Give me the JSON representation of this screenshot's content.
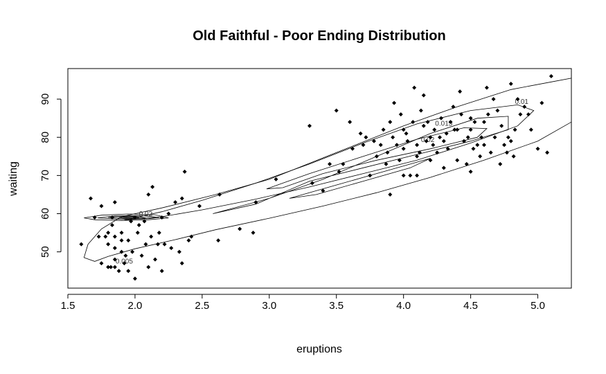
{
  "chart_data": {
    "type": "scatter",
    "title": "Old Faithful - Poor Ending Distribution",
    "xlabel": "eruptions",
    "ylabel": "waiting",
    "xlim": [
      1.5,
      5.25
    ],
    "ylim": [
      40.5,
      98
    ],
    "x_ticks": [
      "1.5",
      "2.0",
      "2.5",
      "3.0",
      "3.5",
      "4.0",
      "4.5",
      "5.0"
    ],
    "y_ticks": [
      "50",
      "60",
      "70",
      "80",
      "90"
    ],
    "grid": false,
    "contour_labels": [
      "0.005",
      "0.01",
      "0.015",
      "0.02",
      "0.02"
    ],
    "contours": [
      {
        "level": "0.005",
        "path": [
          [
            1.62,
            48.5
          ],
          [
            1.65,
            52
          ],
          [
            1.75,
            56
          ],
          [
            1.9,
            59.2
          ],
          [
            2.2,
            61.5
          ],
          [
            2.6,
            65
          ],
          [
            3.0,
            69
          ],
          [
            3.5,
            76
          ],
          [
            4.0,
            83
          ],
          [
            4.4,
            88
          ],
          [
            4.8,
            92.5
          ],
          [
            5.1,
            94.5
          ],
          [
            5.25,
            95.5
          ],
          [
            5.25,
            84
          ],
          [
            5.0,
            79
          ],
          [
            4.6,
            74
          ],
          [
            4.2,
            69.5
          ],
          [
            3.8,
            65.5
          ],
          [
            3.4,
            62
          ],
          [
            3.0,
            58.8
          ],
          [
            2.6,
            55.8
          ],
          [
            2.3,
            53.2
          ],
          [
            2.0,
            50.8
          ],
          [
            1.8,
            48.8
          ],
          [
            1.7,
            47.5
          ],
          [
            1.62,
            48.5
          ]
        ]
      },
      {
        "level": "0.01",
        "path": [
          [
            1.92,
            58.3
          ],
          [
            2.2,
            60.5
          ],
          [
            2.5,
            63.5
          ],
          [
            2.9,
            68
          ],
          [
            3.3,
            73
          ],
          [
            3.7,
            78.5
          ],
          [
            4.1,
            83.5
          ],
          [
            4.5,
            87
          ],
          [
            4.85,
            88.5
          ],
          [
            4.97,
            87
          ],
          [
            4.85,
            83
          ],
          [
            4.5,
            78.5
          ],
          [
            4.1,
            74
          ],
          [
            3.7,
            70.5
          ],
          [
            3.3,
            67
          ],
          [
            2.9,
            63.8
          ],
          [
            2.5,
            61
          ],
          [
            2.2,
            59.2
          ],
          [
            1.92,
            58.3
          ]
        ]
      },
      {
        "level": "0.015",
        "path": [
          [
            2.58,
            60
          ],
          [
            3.0,
            64
          ],
          [
            3.4,
            69
          ],
          [
            3.8,
            75
          ],
          [
            4.2,
            81
          ],
          [
            4.55,
            85
          ],
          [
            4.78,
            85.5
          ],
          [
            4.78,
            82
          ],
          [
            4.5,
            79
          ],
          [
            4.1,
            75.5
          ],
          [
            3.7,
            72
          ],
          [
            3.3,
            68.5
          ],
          [
            2.9,
            62.5
          ],
          [
            2.58,
            60
          ]
        ]
      },
      {
        "level": "0.02",
        "path": [
          [
            2.98,
            66.5
          ],
          [
            3.3,
            70.5
          ],
          [
            3.7,
            75
          ],
          [
            4.1,
            79.5
          ],
          [
            4.45,
            82.5
          ],
          [
            4.62,
            82.3
          ],
          [
            4.55,
            80
          ],
          [
            4.2,
            77
          ],
          [
            3.8,
            74
          ],
          [
            3.4,
            70.5
          ],
          [
            3.1,
            66.8
          ],
          [
            2.98,
            66.5
          ]
        ]
      },
      {
        "level": "0.02",
        "path": [
          [
            3.15,
            64
          ],
          [
            3.5,
            67.5
          ],
          [
            3.9,
            71.5
          ],
          [
            4.2,
            74.5
          ],
          [
            4.05,
            72
          ],
          [
            3.7,
            68.5
          ],
          [
            3.35,
            65
          ],
          [
            3.15,
            64
          ]
        ]
      },
      {
        "level": "0.005-inner",
        "path": [
          [
            1.62,
            58.9
          ],
          [
            1.7,
            58.4
          ],
          [
            1.9,
            58.2
          ],
          [
            2.1,
            58.4
          ],
          [
            2.25,
            58.9
          ],
          [
            2.15,
            59.7
          ],
          [
            1.95,
            59.9
          ],
          [
            1.75,
            59.6
          ],
          [
            1.62,
            58.9
          ]
        ]
      },
      {
        "level": "0.01-inner",
        "path": [
          [
            1.72,
            58.9
          ],
          [
            1.9,
            58.5
          ],
          [
            2.1,
            58.7
          ],
          [
            2.18,
            59.0
          ],
          [
            2.05,
            59.5
          ],
          [
            1.85,
            59.4
          ],
          [
            1.72,
            58.9
          ]
        ]
      },
      {
        "level": "0.015-inner",
        "path": [
          [
            1.8,
            59.0
          ],
          [
            1.95,
            58.7
          ],
          [
            2.08,
            58.9
          ],
          [
            2.0,
            59.3
          ],
          [
            1.85,
            59.2
          ],
          [
            1.8,
            59.0
          ]
        ]
      },
      {
        "level": "0.02-inner",
        "path": [
          [
            1.88,
            59.0
          ],
          [
            1.98,
            58.85
          ],
          [
            2.03,
            59.0
          ],
          [
            1.96,
            59.15
          ],
          [
            1.88,
            59.0
          ]
        ]
      }
    ],
    "points": [
      [
        1.6,
        52
      ],
      [
        1.67,
        64
      ],
      [
        1.7,
        59
      ],
      [
        1.73,
        54
      ],
      [
        1.75,
        47
      ],
      [
        1.75,
        62
      ],
      [
        1.78,
        54
      ],
      [
        1.8,
        46
      ],
      [
        1.8,
        52
      ],
      [
        1.8,
        55
      ],
      [
        1.82,
        46
      ],
      [
        1.83,
        57
      ],
      [
        1.83,
        59
      ],
      [
        1.85,
        46
      ],
      [
        1.85,
        48
      ],
      [
        1.85,
        51
      ],
      [
        1.85,
        54
      ],
      [
        1.85,
        63
      ],
      [
        1.88,
        45
      ],
      [
        1.9,
        50
      ],
      [
        1.9,
        53
      ],
      [
        1.9,
        55
      ],
      [
        1.92,
        47
      ],
      [
        1.93,
        49
      ],
      [
        1.95,
        45
      ],
      [
        1.95,
        53
      ],
      [
        1.97,
        58
      ],
      [
        1.98,
        50
      ],
      [
        2.0,
        43
      ],
      [
        2.0,
        59
      ],
      [
        2.02,
        55
      ],
      [
        2.03,
        57
      ],
      [
        2.05,
        49
      ],
      [
        2.07,
        58
      ],
      [
        2.08,
        52
      ],
      [
        2.1,
        46
      ],
      [
        2.1,
        65
      ],
      [
        2.12,
        54
      ],
      [
        2.13,
        67
      ],
      [
        2.15,
        48
      ],
      [
        2.17,
        52
      ],
      [
        2.18,
        55
      ],
      [
        2.2,
        45
      ],
      [
        2.2,
        59
      ],
      [
        2.22,
        52
      ],
      [
        2.25,
        60
      ],
      [
        2.27,
        51
      ],
      [
        2.3,
        63
      ],
      [
        2.33,
        50
      ],
      [
        2.35,
        47
      ],
      [
        2.35,
        64
      ],
      [
        2.37,
        71
      ],
      [
        2.4,
        53
      ],
      [
        2.42,
        54
      ],
      [
        2.48,
        62
      ],
      [
        2.62,
        53
      ],
      [
        2.63,
        65
      ],
      [
        2.78,
        56
      ],
      [
        2.88,
        55
      ],
      [
        2.9,
        63
      ],
      [
        3.05,
        69
      ],
      [
        3.3,
        83
      ],
      [
        3.32,
        68
      ],
      [
        3.4,
        66
      ],
      [
        3.45,
        73
      ],
      [
        3.5,
        87
      ],
      [
        3.52,
        71
      ],
      [
        3.55,
        73
      ],
      [
        3.6,
        84
      ],
      [
        3.62,
        77
      ],
      [
        3.68,
        81
      ],
      [
        3.7,
        78
      ],
      [
        3.72,
        80
      ],
      [
        3.75,
        70
      ],
      [
        3.78,
        79
      ],
      [
        3.8,
        75
      ],
      [
        3.83,
        78
      ],
      [
        3.85,
        82
      ],
      [
        3.87,
        73
      ],
      [
        3.88,
        76
      ],
      [
        3.9,
        65
      ],
      [
        3.9,
        84
      ],
      [
        3.92,
        80
      ],
      [
        3.93,
        89
      ],
      [
        3.95,
        78
      ],
      [
        3.97,
        74
      ],
      [
        3.98,
        86
      ],
      [
        4.0,
        70
      ],
      [
        4.0,
        77
      ],
      [
        4.0,
        82
      ],
      [
        4.02,
        81
      ],
      [
        4.03,
        79
      ],
      [
        4.05,
        70
      ],
      [
        4.07,
        84
      ],
      [
        4.08,
        93
      ],
      [
        4.1,
        70
      ],
      [
        4.1,
        75
      ],
      [
        4.1,
        78
      ],
      [
        4.12,
        76
      ],
      [
        4.13,
        87
      ],
      [
        4.15,
        83
      ],
      [
        4.15,
        91
      ],
      [
        4.17,
        79
      ],
      [
        4.18,
        84
      ],
      [
        4.2,
        74
      ],
      [
        4.2,
        80
      ],
      [
        4.22,
        78
      ],
      [
        4.23,
        82
      ],
      [
        4.25,
        76
      ],
      [
        4.27,
        80
      ],
      [
        4.28,
        85
      ],
      [
        4.3,
        72
      ],
      [
        4.3,
        79
      ],
      [
        4.32,
        81
      ],
      [
        4.33,
        77
      ],
      [
        4.35,
        84
      ],
      [
        4.37,
        88
      ],
      [
        4.38,
        82
      ],
      [
        4.4,
        74
      ],
      [
        4.4,
        82
      ],
      [
        4.42,
        92
      ],
      [
        4.43,
        86
      ],
      [
        4.45,
        79
      ],
      [
        4.47,
        73
      ],
      [
        4.48,
        80
      ],
      [
        4.5,
        71
      ],
      [
        4.5,
        82
      ],
      [
        4.5,
        85
      ],
      [
        4.52,
        77
      ],
      [
        4.53,
        84
      ],
      [
        4.55,
        78
      ],
      [
        4.57,
        75
      ],
      [
        4.58,
        80
      ],
      [
        4.6,
        78
      ],
      [
        4.6,
        84
      ],
      [
        4.62,
        93
      ],
      [
        4.63,
        86
      ],
      [
        4.65,
        76
      ],
      [
        4.67,
        90
      ],
      [
        4.68,
        80
      ],
      [
        4.7,
        87
      ],
      [
        4.72,
        73
      ],
      [
        4.73,
        83
      ],
      [
        4.75,
        78
      ],
      [
        4.77,
        76
      ],
      [
        4.78,
        80
      ],
      [
        4.8,
        79
      ],
      [
        4.8,
        94
      ],
      [
        4.82,
        75
      ],
      [
        4.83,
        82
      ],
      [
        4.85,
        90
      ],
      [
        4.87,
        86
      ],
      [
        4.9,
        88
      ],
      [
        4.93,
        86
      ],
      [
        4.95,
        82
      ],
      [
        5.0,
        77
      ],
      [
        5.03,
        89
      ],
      [
        5.07,
        76
      ],
      [
        5.1,
        96
      ]
    ]
  }
}
